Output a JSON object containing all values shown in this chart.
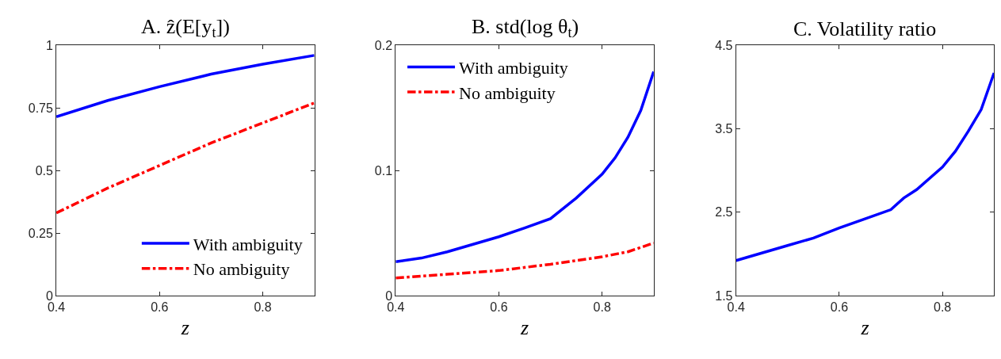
{
  "chart_data": [
    {
      "type": "line",
      "title": "A. ẑ(E[y$_{t}$])",
      "xlabel": "z",
      "xlim": [
        0.4,
        0.9
      ],
      "xticks": [
        0.4,
        0.6,
        0.8
      ],
      "ylim": [
        0,
        1
      ],
      "yticks": [
        0,
        0.25,
        0.5,
        0.75,
        1
      ],
      "legend": "bottom right",
      "marker": "none",
      "x": [
        0.4,
        0.5,
        0.6,
        0.7,
        0.8,
        0.9
      ],
      "series": [
        {
          "name": "With ambiguity",
          "color": "#0000ff",
          "line_style": "solid",
          "values": [
            0.715,
            0.78,
            0.835,
            0.885,
            0.925,
            0.96
          ]
        },
        {
          "name": "No ambiguity",
          "color": "#ff0000",
          "line_style": "dashdot",
          "values": [
            0.33,
            0.43,
            0.52,
            0.61,
            0.69,
            0.77
          ]
        }
      ]
    },
    {
      "type": "line",
      "title": "B. std(log θ$_{t}$)",
      "xlabel": "z",
      "xlim": [
        0.4,
        0.9
      ],
      "xticks": [
        0.4,
        0.6,
        0.8
      ],
      "ylim": [
        0,
        0.2
      ],
      "yticks": [
        0,
        0.1,
        0.2
      ],
      "legend": "top left",
      "marker": "none",
      "series": [
        {
          "name": "With ambiguity",
          "color": "#0000ff",
          "line_style": "solid",
          "x": [
            0.4,
            0.45,
            0.5,
            0.55,
            0.6,
            0.65,
            0.7,
            0.75,
            0.8,
            0.825,
            0.85,
            0.875,
            0.9
          ],
          "values": [
            0.027,
            0.03,
            0.035,
            0.041,
            0.047,
            0.054,
            0.0615,
            0.078,
            0.097,
            0.11,
            0.1265,
            0.148,
            0.179
          ]
        },
        {
          "name": "No ambiguity",
          "color": "#ff0000",
          "line_style": "dashdot",
          "x": [
            0.4,
            0.5,
            0.6,
            0.7,
            0.8,
            0.85,
            0.9
          ],
          "values": [
            0.014,
            0.017,
            0.02,
            0.025,
            0.031,
            0.035,
            0.042
          ]
        }
      ]
    },
    {
      "type": "line",
      "title": "C. Volatility ratio",
      "xlabel": "z",
      "xlim": [
        0.4,
        0.9
      ],
      "xticks": [
        0.4,
        0.6,
        0.8
      ],
      "ylim": [
        1.5,
        4.5
      ],
      "yticks": [
        1.5,
        2.5,
        3.5,
        4.5
      ],
      "marker": "none",
      "series": [
        {
          "color": "#0000ff",
          "line_style": "solid",
          "x": [
            0.4,
            0.45,
            0.5,
            0.55,
            0.6,
            0.65,
            0.7,
            0.725,
            0.75,
            0.8,
            0.825,
            0.85,
            0.875,
            0.9
          ],
          "values": [
            1.92,
            2.01,
            2.1,
            2.19,
            2.31,
            2.42,
            2.53,
            2.67,
            2.77,
            3.04,
            3.23,
            3.47,
            3.73,
            4.17
          ]
        }
      ]
    }
  ]
}
